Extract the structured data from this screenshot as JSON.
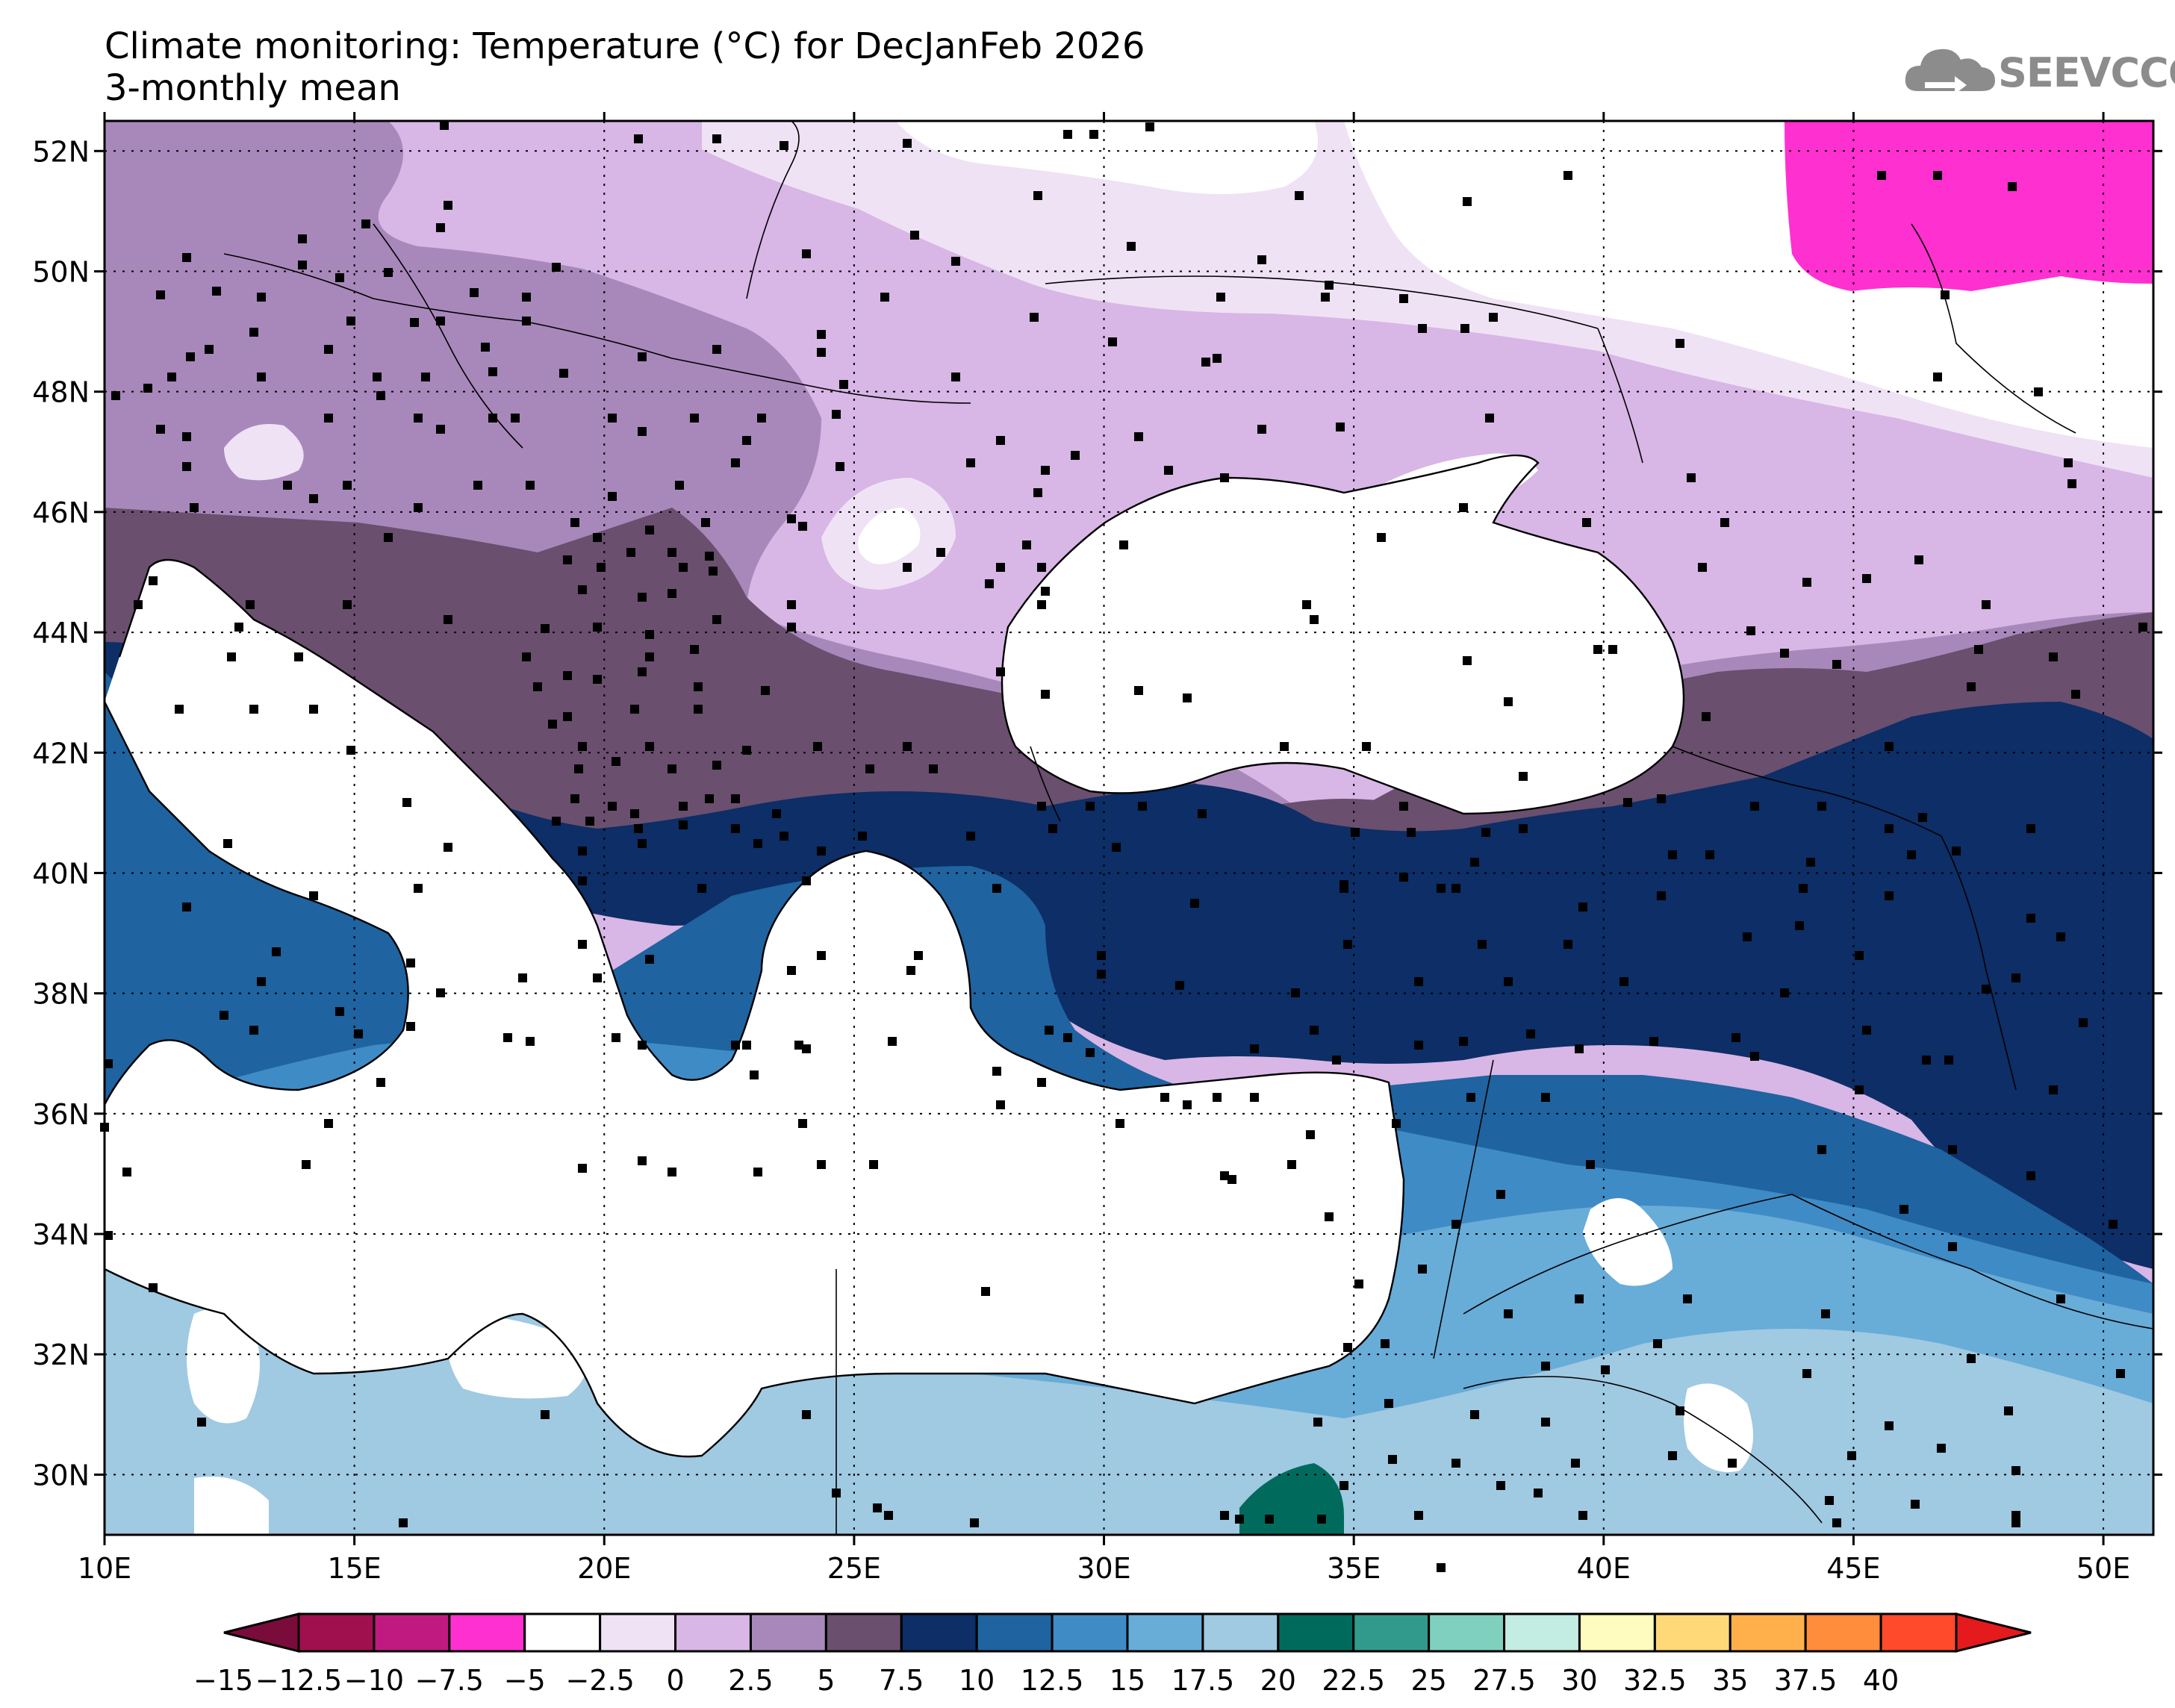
{
  "title": "Climate monitoring: Temperature (°C) for DecJanFeb 2026",
  "subtitle": "3-monthly mean",
  "logo": {
    "name": "cloud-logo-icon",
    "text": "SEEVCCC"
  },
  "map": {
    "lon_range": [
      10,
      51
    ],
    "lat_range": [
      29,
      52.5
    ],
    "lon_ticks": [
      {
        "value": 10,
        "label": "10E"
      },
      {
        "value": 15,
        "label": "15E"
      },
      {
        "value": 20,
        "label": "20E"
      },
      {
        "value": 25,
        "label": "25E"
      },
      {
        "value": 30,
        "label": "30E"
      },
      {
        "value": 35,
        "label": "35E"
      },
      {
        "value": 40,
        "label": "40E"
      },
      {
        "value": 45,
        "label": "45E"
      },
      {
        "value": 50,
        "label": "50E"
      }
    ],
    "lat_ticks": [
      {
        "value": 30,
        "label": "30N"
      },
      {
        "value": 32,
        "label": "32N"
      },
      {
        "value": 34,
        "label": "34N"
      },
      {
        "value": 36,
        "label": "36N"
      },
      {
        "value": 38,
        "label": "38N"
      },
      {
        "value": 40,
        "label": "40N"
      },
      {
        "value": 42,
        "label": "42N"
      },
      {
        "value": 44,
        "label": "44N"
      },
      {
        "value": 46,
        "label": "46N"
      },
      {
        "value": 48,
        "label": "48N"
      },
      {
        "value": 50,
        "label": "50N"
      },
      {
        "value": 52,
        "label": "52N"
      }
    ],
    "grid": "dotted"
  },
  "colorbar": {
    "labels": [
      "−15",
      "−12.5",
      "−10",
      "−7.5",
      "−5",
      "−2.5",
      "0",
      "2.5",
      "5",
      "7.5",
      "10",
      "12.5",
      "15",
      "17.5",
      "20",
      "22.5",
      "25",
      "27.5",
      "30",
      "32.5",
      "35",
      "37.5",
      "40"
    ],
    "colors": [
      "#a0104f",
      "#c01a80",
      "#ff30d0",
      "#ffffff",
      "#efe2f5",
      "#d8b6e6",
      "#a888bb",
      "#6a4f6e",
      "#0d2e66",
      "#1f63a0",
      "#3f8bc5",
      "#68acd8",
      "#a0c9e2",
      "#006b5c",
      "#329a8c",
      "#80d0c0",
      "#c3ece2",
      "#fffcc0",
      "#ffd978",
      "#ffb04b",
      "#ff8d3b",
      "#ff4a2b"
    ],
    "low_end_color": "#7a0c3c",
    "high_end_color": "#e41a1c"
  }
}
